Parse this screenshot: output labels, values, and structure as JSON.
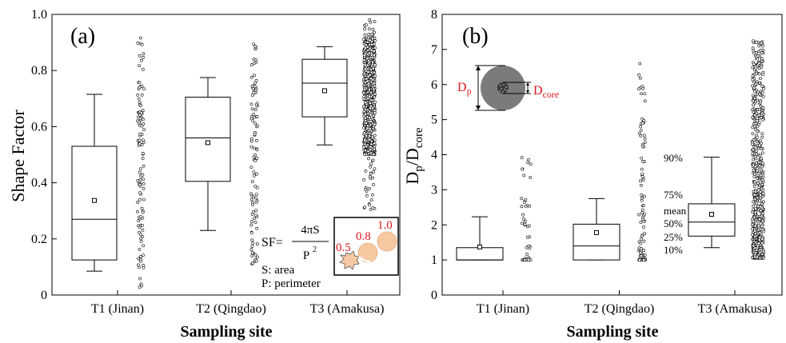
{
  "chart_data": [
    {
      "type": "box",
      "panel_label": "(a)",
      "ylabel": "Shape Factor",
      "xlabel": "Sampling site",
      "ylim": [
        0,
        1.0
      ],
      "yticks": [
        "0",
        "0.2",
        "0.4",
        "0.6",
        "0.8",
        "1.0"
      ],
      "ytick_values": [
        0,
        0.2,
        0.4,
        0.6,
        0.8,
        1.0
      ],
      "categories": [
        "T1 (Jinan)",
        "T2 (Qingdao)",
        "T3 (Amakusa)"
      ],
      "boxes": [
        {
          "whisker_low": 0.085,
          "q1": 0.125,
          "median": 0.27,
          "q3": 0.53,
          "whisker_high": 0.715,
          "mean": 0.337
        },
        {
          "whisker_low": 0.23,
          "q1": 0.405,
          "median": 0.56,
          "q3": 0.705,
          "whisker_high": 0.775,
          "mean": 0.543
        },
        {
          "whisker_low": 0.535,
          "q1": 0.635,
          "median": 0.755,
          "q3": 0.84,
          "whisker_high": 0.885,
          "mean": 0.728
        }
      ],
      "inset": {
        "formula_lhs": "SF=",
        "formula_num": "4πS",
        "formula_den": "P",
        "formula_den_exp": "2",
        "legend_area": "S: area",
        "legend_perimeter": "P: perimeter",
        "sample_labels": [
          "0.5",
          "0.8",
          "1.0"
        ]
      }
    },
    {
      "type": "box",
      "panel_label": "(b)",
      "ylabel_main": "D",
      "ylabel_sub1": "p",
      "ylabel_sep": "/D",
      "ylabel_sub2": "core",
      "xlabel": "Sampling site",
      "ylim": [
        0,
        8
      ],
      "yticks": [
        "0",
        "1",
        "2",
        "3",
        "4",
        "5",
        "6",
        "7",
        "8"
      ],
      "ytick_values": [
        0,
        1,
        2,
        3,
        4,
        5,
        6,
        7,
        8
      ],
      "categories": [
        "T1 (Jinan)",
        "T2 (Qingdao)",
        "T3 (Amakusa)"
      ],
      "boxes": [
        {
          "whisker_low": 1.0,
          "q1": 1.0,
          "median": 1.0,
          "q3": 1.35,
          "whisker_high": 2.23,
          "mean": 1.37
        },
        {
          "whisker_low": 1.0,
          "q1": 1.0,
          "median": 1.4,
          "q3": 2.02,
          "whisker_high": 2.75,
          "mean": 1.78
        },
        {
          "whisker_low": 1.35,
          "q1": 1.68,
          "median": 2.08,
          "q3": 2.6,
          "whisker_high": 3.93,
          "mean": 2.3
        }
      ],
      "inset": {
        "dp_main": "D",
        "dp_sub": "p",
        "dcore_main": "D",
        "dcore_sub": "core"
      },
      "box_legend": {
        "p90": "90%",
        "p75": "75%",
        "mean": "mean",
        "p50": "50%",
        "p25": "25%",
        "p10": "10%"
      }
    }
  ],
  "colors": {
    "particle": "#f6c9a3",
    "particle_edge": "#e8a877",
    "label_red": "#e0141a",
    "inset_gray": "#7b7b7e"
  }
}
